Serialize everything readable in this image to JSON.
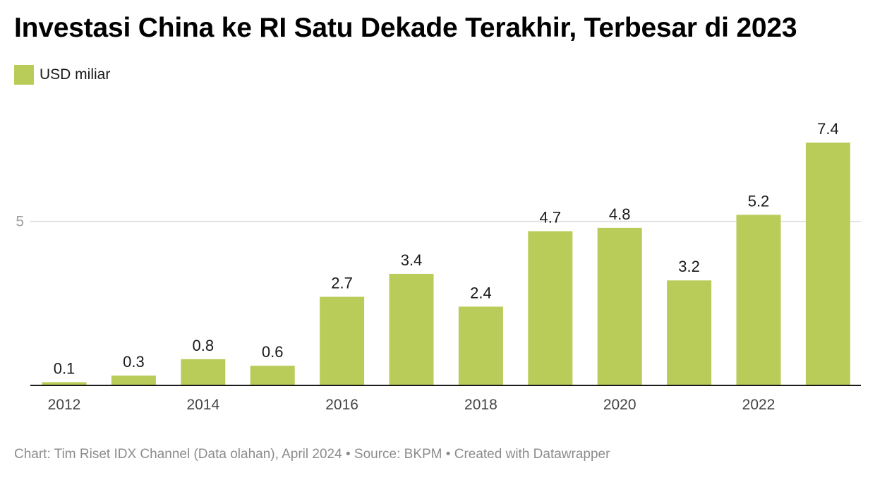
{
  "title": "Investasi China ke RI Satu Dekade Terakhir, Terbesar di 2023",
  "legend": {
    "label": "USD miliar"
  },
  "footer": {
    "credit": "Chart: Tim Riset IDX Channel (Data olahan), April 2024",
    "source": "Source: BKPM",
    "tool": "Created with Datawrapper",
    "separator": "•"
  },
  "colors": {
    "bar": "#b9cc59",
    "grid": "#dddddd",
    "axis": "#1a1a1a",
    "tick_label": "#444444",
    "y_tick_label": "#a0a0a0"
  },
  "chart_data": {
    "type": "bar",
    "categories": [
      "2012",
      "2013",
      "2014",
      "2015",
      "2016",
      "2017",
      "2018",
      "2019",
      "2020",
      "2021",
      "2022",
      "2023"
    ],
    "x_tick_labels": [
      "2012",
      "",
      "2014",
      "",
      "2016",
      "",
      "2018",
      "",
      "2020",
      "",
      "2022",
      ""
    ],
    "series": [
      {
        "name": "USD miliar",
        "values": [
          0.1,
          0.3,
          0.8,
          0.6,
          2.7,
          3.4,
          2.4,
          4.7,
          4.8,
          3.2,
          5.2,
          7.4
        ]
      }
    ],
    "data_labels": [
      "0.1",
      "0.3",
      "0.8",
      "0.6",
      "2.7",
      "3.4",
      "2.4",
      "4.7",
      "4.8",
      "3.2",
      "5.2",
      "7.4"
    ],
    "y_ticks": [
      5
    ],
    "y_tick_labels": [
      "5"
    ],
    "ylim": [
      0,
      7.4
    ],
    "grid": true,
    "legend_position": "top-left",
    "title": "Investasi China ke RI Satu Dekade Terakhir, Terbesar di 2023",
    "xlabel": "",
    "ylabel": ""
  }
}
